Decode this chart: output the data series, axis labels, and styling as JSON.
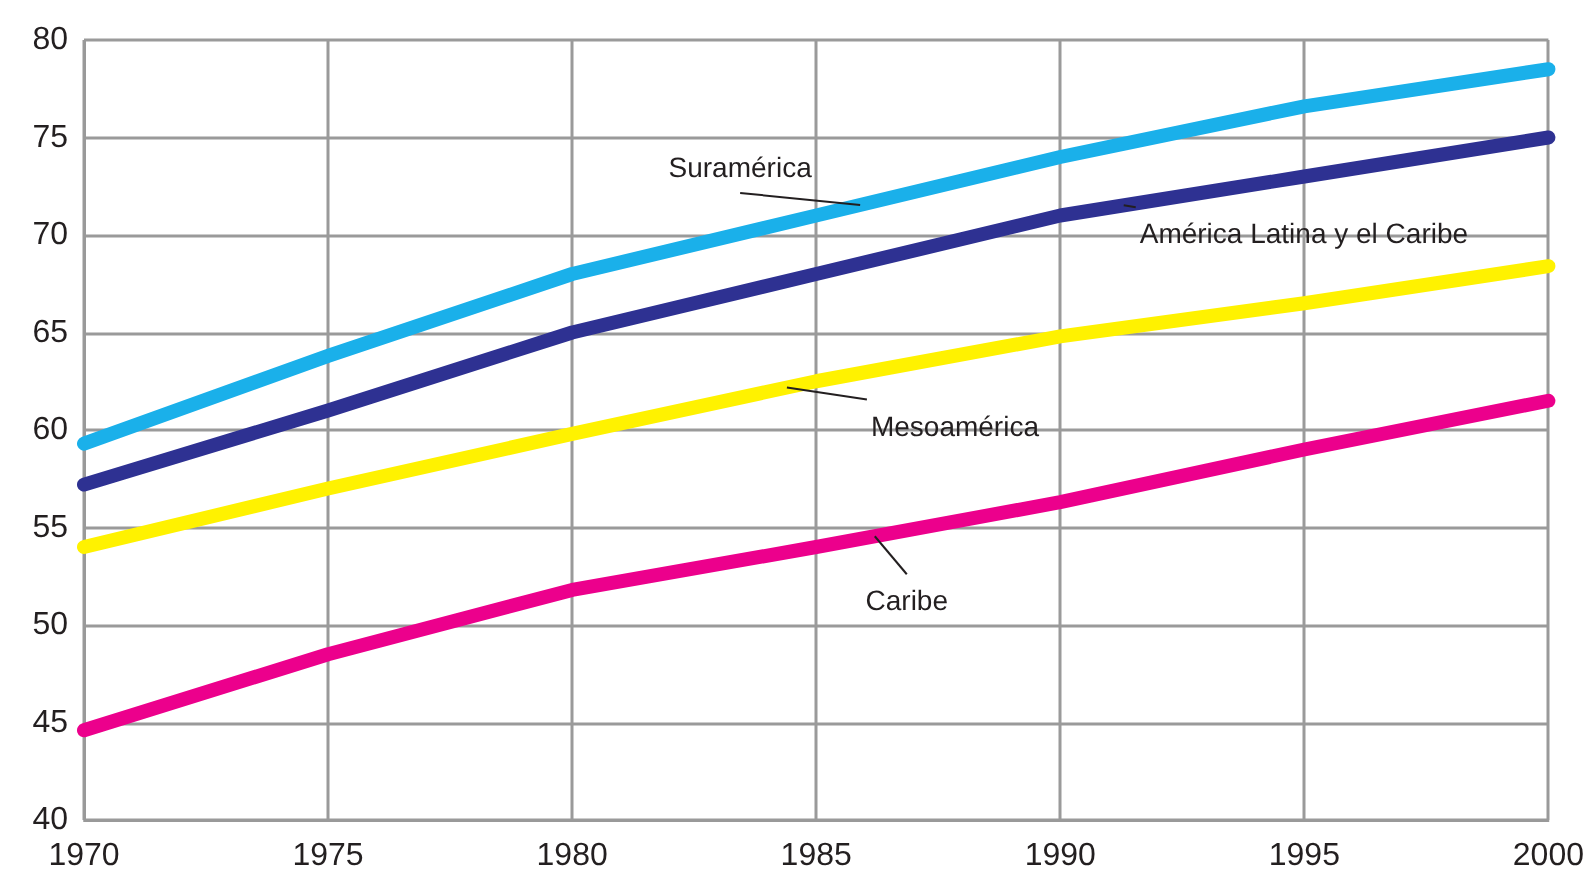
{
  "chart_data": {
    "type": "line",
    "x": [
      1970,
      1975,
      1980,
      1985,
      1990,
      1995,
      2000
    ],
    "series": [
      {
        "name": "Suramérica",
        "color": "#1ab0ea",
        "values": [
          59.3,
          63.8,
          68,
          71,
          74,
          76.6,
          78.5
        ]
      },
      {
        "name": "América Latina y el Caribe",
        "color": "#2e3192",
        "values": [
          57.2,
          61,
          65,
          68,
          71,
          73,
          75
        ]
      },
      {
        "name": "Mesoamérica",
        "color": "#fff200",
        "values": [
          54,
          57,
          59.8,
          62.5,
          64.8,
          66.5,
          68.4
        ]
      },
      {
        "name": "Caribe",
        "color": "#ec008c",
        "values": [
          44.6,
          48.5,
          51.8,
          54,
          56.3,
          59,
          61.5
        ]
      }
    ],
    "xlim": [
      1970,
      2000
    ],
    "xticks": [
      1970,
      1975,
      1980,
      1985,
      1990,
      1995,
      2000
    ],
    "ylim": [
      40,
      80
    ],
    "yticks": [
      40,
      45,
      50,
      55,
      60,
      65,
      70,
      75,
      80
    ],
    "grid": true,
    "legend": false,
    "line_style": "solid"
  }
}
